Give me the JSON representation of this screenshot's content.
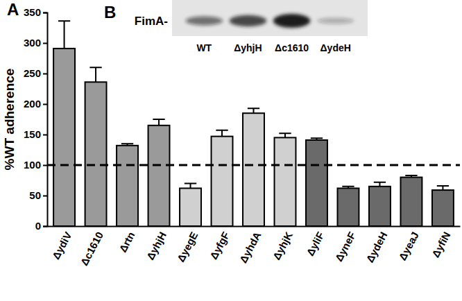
{
  "chart_data": {
    "type": "bar",
    "y_label": "%WT adherence",
    "categories": [
      "ΔydiV",
      "Δc1610",
      "Δrtn",
      "ΔyhjH",
      "ΔyegE",
      "ΔyfgF",
      "ΔyhdA",
      "ΔyhjK",
      "ΔyliF",
      "ΔyneF",
      "ΔydeH",
      "ΔyeaJ",
      "ΔyfiN"
    ],
    "values": [
      291,
      236,
      132,
      165,
      62,
      147,
      185,
      145,
      141,
      62,
      65,
      80,
      59
    ],
    "errors": [
      45,
      24,
      3,
      10,
      8,
      10,
      8,
      7,
      3,
      3,
      7,
      3,
      7
    ],
    "colors": [
      "#9a9a9a",
      "#9a9a9a",
      "#9a9a9a",
      "#9a9a9a",
      "#d0d0d0",
      "#d0d0d0",
      "#d0d0d0",
      "#d0d0d0",
      "#6a6a6a",
      "#6a6a6a",
      "#6a6a6a",
      "#6a6a6a",
      "#6a6a6a"
    ],
    "reference_line": 100,
    "ylim": [
      0,
      350
    ],
    "yticks": [
      0,
      50,
      100,
      150,
      200,
      250,
      300,
      350
    ],
    "grid": false
  },
  "panel_labels": [
    "A",
    "B"
  ],
  "blot": {
    "label": "FimA-",
    "lanes": [
      "WT",
      "ΔyhjH",
      "Δc1610",
      "ΔydeH"
    ],
    "band_intensity": [
      1.0,
      1.4,
      1.8,
      0.5
    ]
  }
}
